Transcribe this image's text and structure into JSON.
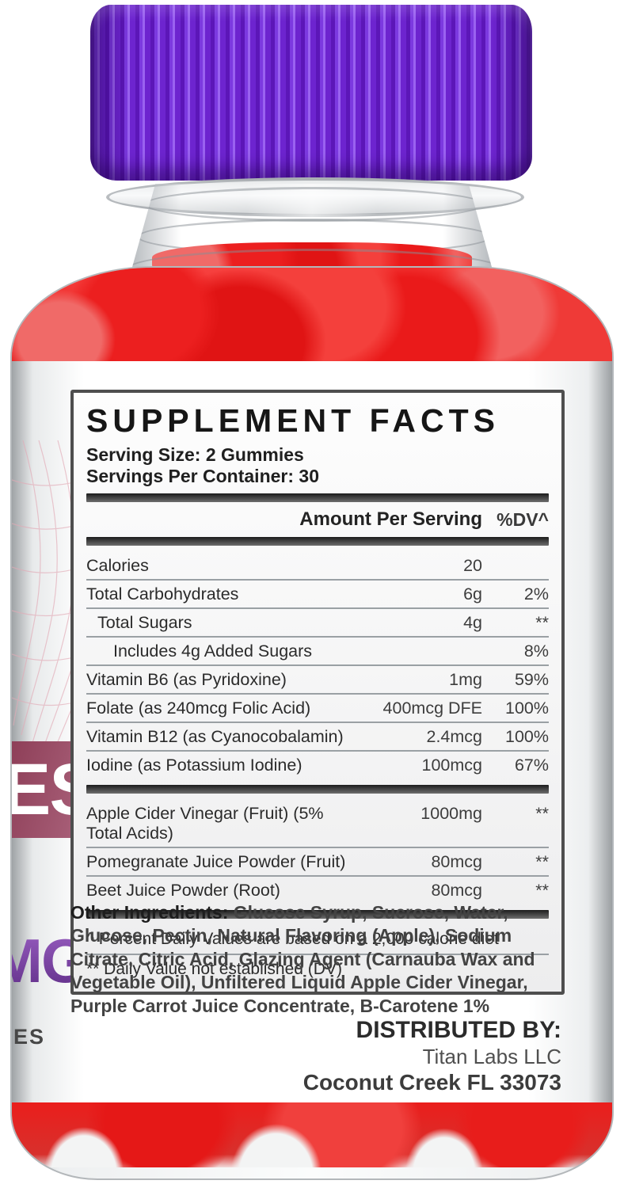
{
  "product": {
    "type": "supplement gummies bottle photo",
    "colors": {
      "cap_purple": "#6d24cf",
      "gummy_red": "#ec1c1a",
      "left_band_maroon": "#97485f",
      "mg_text_purple": "#8344ab"
    },
    "left_edge_texts": {
      "band": "ES",
      "mg": "MG",
      "small": "ES"
    }
  },
  "supplement_facts": {
    "title": "SUPPLEMENT FACTS",
    "serving_size": "Serving Size: 2 Gummies",
    "servings_per_container": "Servings Per Container: 30",
    "columns": {
      "amount": "Amount Per Serving",
      "dv": "%DV^"
    },
    "groups": [
      {
        "rows": [
          {
            "name": "Calories",
            "amount": "20",
            "dv": "",
            "indent": 0
          },
          {
            "name": "Total Carbohydrates",
            "amount": "6g",
            "dv": "2%",
            "indent": 0
          },
          {
            "name": "Total Sugars",
            "amount": "4g",
            "dv": "**",
            "indent": 1
          },
          {
            "name": "Includes 4g Added Sugars",
            "amount": "",
            "dv": "8%",
            "indent": 2
          },
          {
            "name": "Vitamin B6 (as Pyridoxine)",
            "amount": "1mg",
            "dv": "59%",
            "indent": 0
          },
          {
            "name": "Folate (as 240mcg Folic Acid)",
            "amount": "400mcg DFE",
            "dv": "100%",
            "indent": 0
          },
          {
            "name": "Vitamin B12 (as Cyanocobalamin)",
            "amount": "2.4mcg",
            "dv": "100%",
            "indent": 0
          },
          {
            "name": "Iodine (as Potassium Iodine)",
            "amount": "100mcg",
            "dv": "67%",
            "indent": 0
          }
        ]
      },
      {
        "rows": [
          {
            "name": "Apple Cider Vinegar (Fruit) (5% Total Acids)",
            "amount": "1000mg",
            "dv": "**",
            "indent": 0
          },
          {
            "name": "Pomegranate Juice Powder (Fruit)",
            "amount": "80mcg",
            "dv": "**",
            "indent": 0
          },
          {
            "name": "Beet Juice Powder (Root)",
            "amount": "80mcg",
            "dv": "**",
            "indent": 0
          }
        ]
      }
    ],
    "footnotes": {
      "percent": "^ Percent Daily Values are based on a 2,000 calorie diet",
      "not_established": "** Daily Value not established (DV)"
    }
  },
  "other_ingredients": {
    "label": "Other Ingredients:",
    "text": " Glucose Syrup, Sucrose, Water, Glucose, Pectin, Natural Flavoring (Apple), Sodium Citrate, Citric Acid, Glazing Agent (Carnauba Wax and Vegetable Oil), Unfiltered Liquid Apple Cider Vinegar, Purple Carrot Juice Concentrate, B-Carotene 1%"
  },
  "distributor": {
    "heading": "DISTRIBUTED BY:",
    "name": "Titan Labs LLC",
    "address": "Coconut Creek FL 33073"
  }
}
